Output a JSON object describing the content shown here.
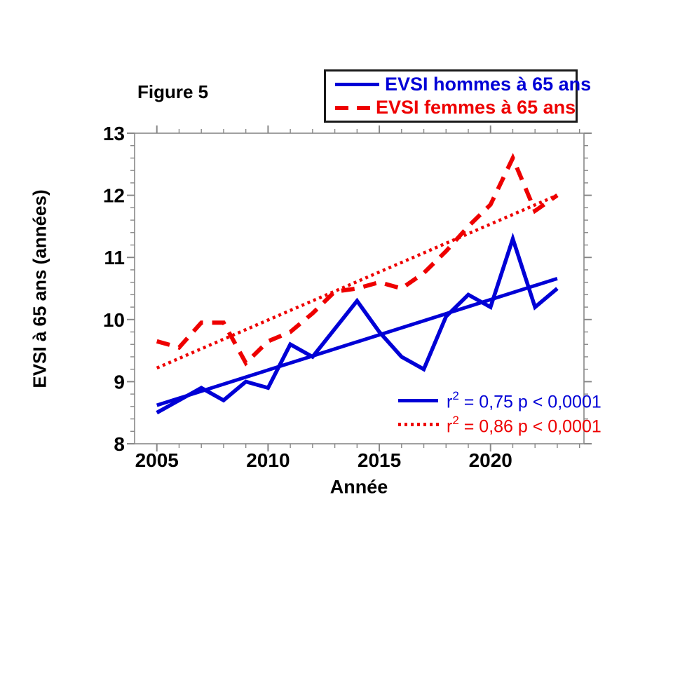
{
  "figure": {
    "title": "Figure 5"
  },
  "colors": {
    "blue": "#0000d6",
    "red": "#ee0000",
    "axis": "#888888",
    "text": "#000000"
  },
  "legend": {
    "position": "top-right",
    "items": [
      {
        "label": "EVSI hommes à 65 ans",
        "color": "#0000d6",
        "style": "solid"
      },
      {
        "label": "EVSI femmes à 65 ans",
        "color": "#ee0000",
        "style": "dashed"
      }
    ]
  },
  "axes": {
    "x_title": "Année",
    "y_title": "EVSI à 65 ans (années)"
  },
  "annotations": [
    {
      "prefix": "r",
      "sup": "2",
      "text": " = 0,75 p < 0,0001",
      "color": "#0000d6",
      "series": "EVSI hommes à 65 ans"
    },
    {
      "prefix": "r",
      "sup": "2",
      "text": " = 0,86 p < 0,0001",
      "color": "#ee0000",
      "series": "EVSI femmes à 65 ans"
    }
  ],
  "chart_data": {
    "type": "line",
    "title": "Figure 5",
    "xlabel": "Année",
    "ylabel": "EVSI à 65 ans (années)",
    "x": [
      2005,
      2006,
      2007,
      2008,
      2009,
      2010,
      2011,
      2012,
      2013,
      2014,
      2015,
      2016,
      2017,
      2018,
      2019,
      2020,
      2021,
      2022,
      2023
    ],
    "series": [
      {
        "name": "EVSI hommes à 65 ans",
        "color": "#0000d6",
        "style": "solid",
        "values": [
          8.5,
          8.7,
          8.9,
          8.7,
          9.0,
          8.9,
          9.6,
          9.4,
          9.85,
          10.3,
          9.8,
          9.4,
          9.2,
          10.05,
          10.4,
          10.2,
          11.3,
          10.2,
          10.5
        ]
      },
      {
        "name": "EVSI femmes à 65 ans",
        "color": "#ee0000",
        "style": "dashed",
        "values": [
          9.65,
          9.55,
          9.95,
          9.95,
          9.3,
          9.65,
          9.8,
          10.1,
          10.45,
          10.5,
          10.6,
          10.5,
          10.75,
          11.1,
          11.5,
          11.85,
          12.6,
          11.75,
          12.0
        ]
      }
    ],
    "trend_lines": [
      {
        "name": "hommes-trend",
        "color": "#0000d6",
        "style": "solid",
        "x_start": 2005,
        "y_start": 8.62,
        "x_end": 2023,
        "y_end": 10.66,
        "r_squared": "0,75",
        "p_value": "< 0,0001"
      },
      {
        "name": "femmes-trend",
        "color": "#ee0000",
        "style": "dotted",
        "x_start": 2005,
        "y_start": 9.22,
        "x_end": 2023,
        "y_end": 12.0,
        "r_squared": "0,86",
        "p_value": "< 0,0001"
      }
    ],
    "xlim": [
      2004,
      2024.2
    ],
    "ylim": [
      8,
      13
    ],
    "xticks_major": [
      2005,
      2010,
      2015,
      2020
    ],
    "xticks_minor_step": 1,
    "yticks_major": [
      8,
      9,
      10,
      11,
      12,
      13
    ],
    "yticks_minor_step": 0.2,
    "grid": false,
    "legend_position": "top-right"
  }
}
